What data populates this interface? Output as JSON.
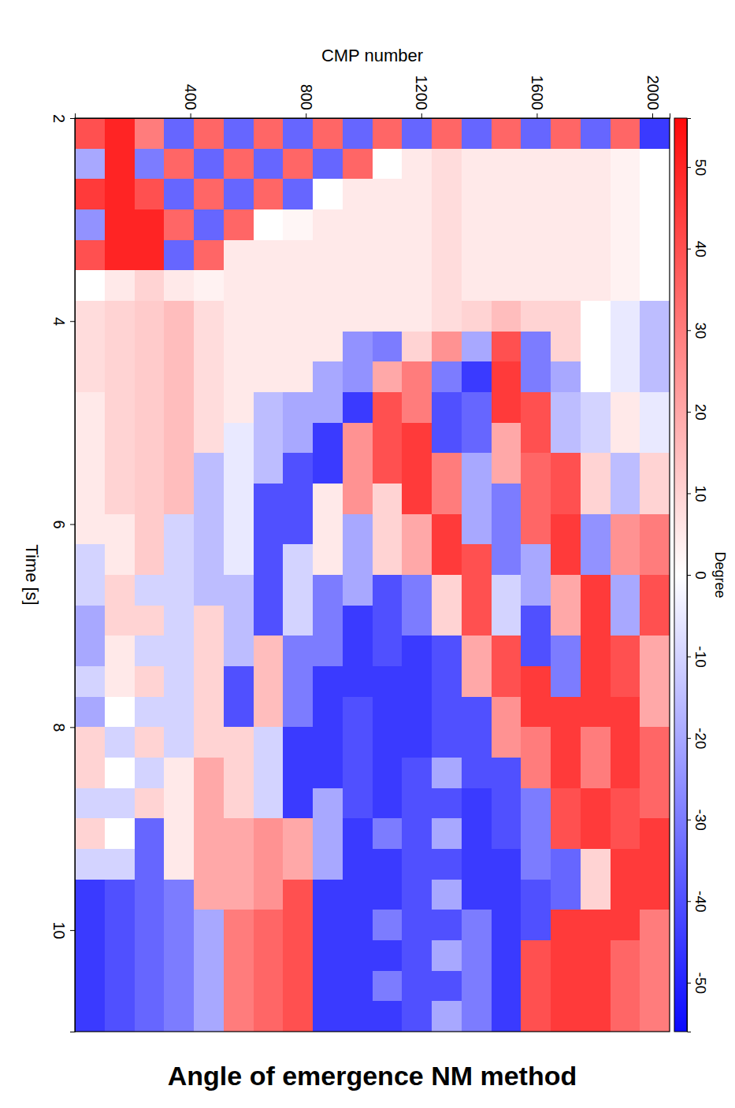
{
  "chart_data": {
    "type": "heatmap",
    "title": "Angle of emergence NM method",
    "x_label": "CMP number",
    "y_label": "Time [s]",
    "xlim": [
      0,
      2060
    ],
    "xticks": [
      400,
      800,
      1200,
      1600,
      2000
    ],
    "ylim": [
      2,
      11
    ],
    "yticks": [
      2,
      4,
      6,
      8,
      10
    ],
    "cells": {
      "x_edges": [
        0,
        103,
        206,
        309,
        412,
        515,
        618,
        721,
        824,
        927,
        1030,
        1133,
        1236,
        1339,
        1442,
        1545,
        1648,
        1751,
        1854,
        1957,
        2060
      ],
      "y_edges": [
        2,
        2.3,
        2.6,
        2.9,
        3.2,
        3.5,
        3.8,
        4.1,
        4.4,
        4.7,
        5,
        5.3,
        5.6,
        5.9,
        6.2,
        6.5,
        6.8,
        7.1,
        7.4,
        7.7,
        8,
        8.3,
        8.6,
        8.9,
        9.2,
        9.5,
        9.8,
        10.1,
        10.4,
        10.7,
        11
      ],
      "values": [
        [
          40,
          50,
          30,
          -35,
          35,
          -35,
          35,
          -35,
          35,
          -35,
          35,
          -35,
          35,
          -35,
          35,
          -35,
          35,
          -35,
          35,
          -45
        ],
        [
          -20,
          50,
          -30,
          35,
          -35,
          35,
          -35,
          35,
          -35,
          35,
          0,
          5,
          8,
          5,
          5,
          5,
          5,
          5,
          3,
          0
        ],
        [
          45,
          50,
          40,
          -35,
          35,
          -35,
          35,
          -35,
          0,
          5,
          5,
          5,
          8,
          5,
          5,
          5,
          5,
          5,
          3,
          0
        ],
        [
          -25,
          50,
          50,
          35,
          -35,
          35,
          0,
          2,
          5,
          5,
          5,
          5,
          8,
          5,
          5,
          5,
          5,
          5,
          3,
          0
        ],
        [
          40,
          50,
          50,
          -35,
          35,
          5,
          5,
          5,
          5,
          5,
          5,
          5,
          8,
          5,
          5,
          5,
          5,
          5,
          3,
          0
        ],
        [
          0,
          5,
          10,
          5,
          3,
          5,
          5,
          5,
          5,
          5,
          5,
          5,
          8,
          5,
          5,
          5,
          5,
          5,
          3,
          0
        ],
        [
          8,
          10,
          12,
          15,
          8,
          5,
          5,
          5,
          5,
          5,
          5,
          5,
          8,
          10,
          15,
          10,
          10,
          0,
          -5,
          -15
        ],
        [
          8,
          10,
          12,
          15,
          8,
          5,
          5,
          5,
          5,
          -25,
          -30,
          10,
          25,
          -20,
          40,
          -30,
          10,
          0,
          -5,
          -15
        ],
        [
          8,
          10,
          12,
          15,
          8,
          5,
          5,
          5,
          -20,
          -25,
          20,
          30,
          -30,
          -45,
          45,
          -30,
          -20,
          0,
          -5,
          -15
        ],
        [
          5,
          10,
          12,
          15,
          8,
          5,
          -15,
          -20,
          -20,
          -45,
          40,
          30,
          -40,
          -35,
          45,
          40,
          -15,
          -10,
          5,
          -5
        ],
        [
          5,
          10,
          12,
          15,
          8,
          -5,
          -15,
          -20,
          -45,
          25,
          40,
          45,
          -40,
          -35,
          20,
          40,
          -15,
          -10,
          5,
          -5
        ],
        [
          5,
          10,
          12,
          15,
          -15,
          -5,
          -15,
          -40,
          -45,
          25,
          40,
          45,
          30,
          -20,
          20,
          35,
          40,
          10,
          -15,
          10
        ],
        [
          5,
          10,
          12,
          15,
          -15,
          -5,
          -40,
          -40,
          5,
          25,
          10,
          45,
          30,
          -20,
          -30,
          35,
          40,
          10,
          -15,
          10
        ],
        [
          5,
          5,
          12,
          -10,
          -15,
          -5,
          -40,
          -40,
          5,
          -20,
          10,
          20,
          45,
          -20,
          -30,
          35,
          45,
          -25,
          25,
          30
        ],
        [
          -10,
          5,
          12,
          -10,
          -15,
          -5,
          -40,
          -10,
          5,
          -20,
          10,
          20,
          45,
          40,
          -30,
          -20,
          45,
          -25,
          25,
          30
        ],
        [
          -10,
          10,
          -10,
          -10,
          -15,
          -15,
          -40,
          -10,
          -30,
          -20,
          -40,
          -30,
          10,
          40,
          -10,
          -20,
          20,
          45,
          -20,
          40
        ],
        [
          -20,
          10,
          10,
          -10,
          10,
          -15,
          -40,
          -10,
          -30,
          -45,
          -40,
          -30,
          10,
          40,
          -10,
          -40,
          20,
          45,
          -20,
          40
        ],
        [
          -20,
          5,
          -10,
          -10,
          10,
          -15,
          15,
          -30,
          -30,
          -45,
          -40,
          -45,
          -40,
          20,
          40,
          -40,
          -30,
          45,
          40,
          20
        ],
        [
          -10,
          5,
          10,
          -10,
          10,
          -40,
          15,
          -30,
          -45,
          -45,
          -45,
          -45,
          -40,
          20,
          40,
          45,
          -30,
          45,
          40,
          20
        ],
        [
          -20,
          0,
          -10,
          -10,
          10,
          -40,
          15,
          -30,
          -45,
          -40,
          -45,
          -45,
          -40,
          -40,
          25,
          45,
          45,
          45,
          45,
          20
        ],
        [
          10,
          -10,
          10,
          -10,
          10,
          10,
          -10,
          -45,
          -45,
          -40,
          -45,
          -45,
          -40,
          -40,
          25,
          30,
          45,
          30,
          45,
          35
        ],
        [
          10,
          0,
          -10,
          5,
          20,
          10,
          -10,
          -45,
          -45,
          -40,
          -45,
          -40,
          -20,
          -40,
          -40,
          30,
          45,
          30,
          45,
          35
        ],
        [
          -10,
          -10,
          10,
          5,
          20,
          10,
          -10,
          -45,
          -20,
          -40,
          -45,
          -40,
          -40,
          -45,
          -40,
          -30,
          40,
          45,
          40,
          35
        ],
        [
          10,
          0,
          -35,
          5,
          20,
          20,
          25,
          20,
          -20,
          -45,
          -30,
          -40,
          -20,
          -45,
          -40,
          -30,
          40,
          45,
          40,
          45
        ],
        [
          -10,
          -10,
          -35,
          5,
          20,
          20,
          25,
          20,
          -20,
          -45,
          -45,
          -40,
          -40,
          -45,
          -45,
          -30,
          -35,
          10,
          45,
          45
        ],
        [
          -45,
          -40,
          -35,
          -30,
          20,
          20,
          25,
          40,
          -45,
          -45,
          -45,
          -40,
          -20,
          -45,
          -45,
          -40,
          -35,
          10,
          45,
          45
        ],
        [
          -45,
          -40,
          -35,
          -30,
          -20,
          30,
          35,
          40,
          -45,
          -45,
          -30,
          -40,
          -40,
          -30,
          -45,
          -40,
          45,
          45,
          45,
          30
        ],
        [
          -45,
          -40,
          -35,
          -30,
          -20,
          30,
          35,
          40,
          -45,
          -45,
          -45,
          -40,
          -20,
          -30,
          -45,
          40,
          45,
          45,
          35,
          30
        ],
        [
          -45,
          -40,
          -35,
          -30,
          -20,
          30,
          35,
          40,
          -45,
          -45,
          -30,
          -40,
          -40,
          -30,
          -45,
          40,
          45,
          45,
          35,
          30
        ],
        [
          -45,
          -40,
          -35,
          -30,
          -20,
          30,
          35,
          40,
          -45,
          -45,
          -45,
          -40,
          -20,
          -30,
          -45,
          40,
          45,
          45,
          35,
          30
        ]
      ]
    },
    "colorbar": {
      "label": "Degree",
      "range": [
        -56,
        56
      ],
      "ticks": [
        50,
        40,
        30,
        20,
        10,
        0,
        -10,
        -20,
        -30,
        -40,
        -50
      ]
    }
  }
}
